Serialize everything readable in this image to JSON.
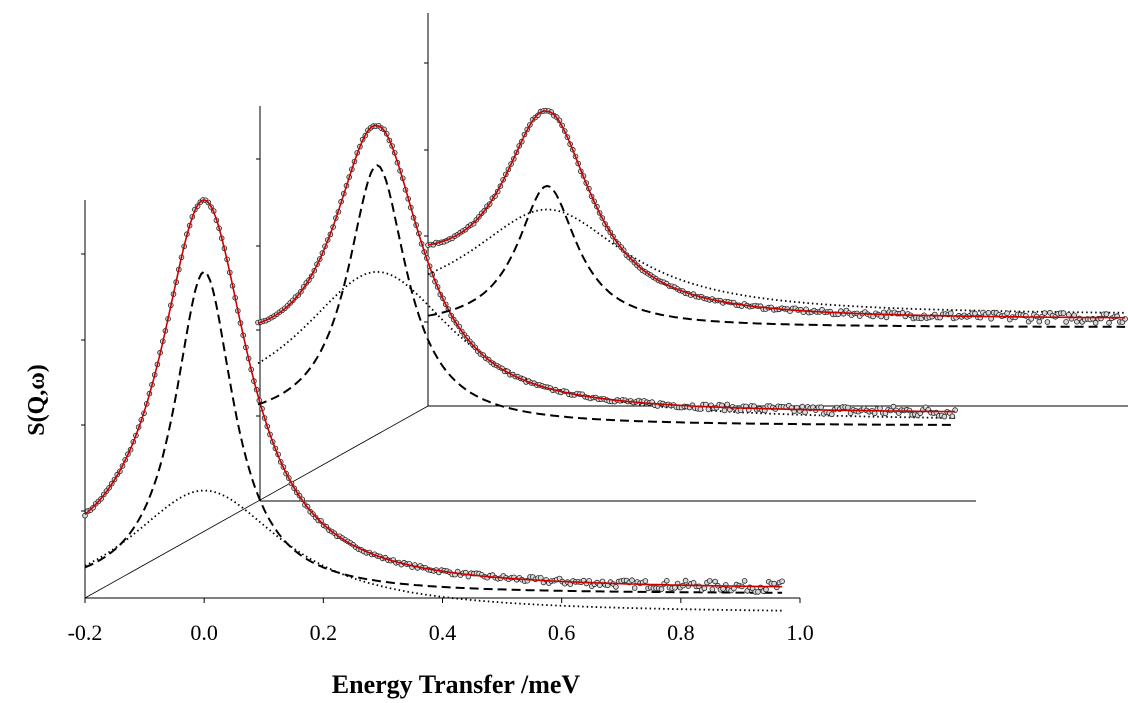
{
  "chart_data": {
    "type": "line",
    "xlabel": "Energy Transfer /meV",
    "ylabel": "S(Q,ω)",
    "xlim": [
      -0.2,
      1.0
    ],
    "x_ticks": [
      "-0.2",
      "0.0",
      "0.2",
      "0.4",
      "0.6",
      "0.8",
      "1.0"
    ],
    "layout": "waterfall",
    "series_styles": {
      "data": "open-circles",
      "fit": "solid",
      "narrow_component": "dashed",
      "broad_component": "dotted"
    },
    "colors": {
      "fit": "#cc0000",
      "components": "#000000"
    },
    "panels": [
      {
        "x_range": [
          -0.2,
          0.97
        ],
        "peak_x": 0.0,
        "data_peak": 1.0,
        "data_baseline": 0.02,
        "data_start": 0.21,
        "narrow_peak": 0.82,
        "narrow_tail": 0.01,
        "broad_peak": 0.27,
        "broad_tail": -0.04
      },
      {
        "x_range": [
          -0.2,
          0.97
        ],
        "peak_x": 0.0,
        "data_peak": 0.95,
        "data_baseline": 0.22,
        "data_start": 0.45,
        "narrow_peak": 0.85,
        "narrow_tail": 0.19,
        "broad_peak": 0.58,
        "broad_tail": 0.2
      },
      {
        "x_range": [
          -0.2,
          0.97
        ],
        "peak_x": 0.0,
        "data_peak": 0.75,
        "data_baseline": 0.22,
        "data_start": 0.41,
        "narrow_peak": 0.56,
        "narrow_tail": 0.2,
        "broad_peak": 0.5,
        "broad_tail": 0.23
      }
    ]
  }
}
